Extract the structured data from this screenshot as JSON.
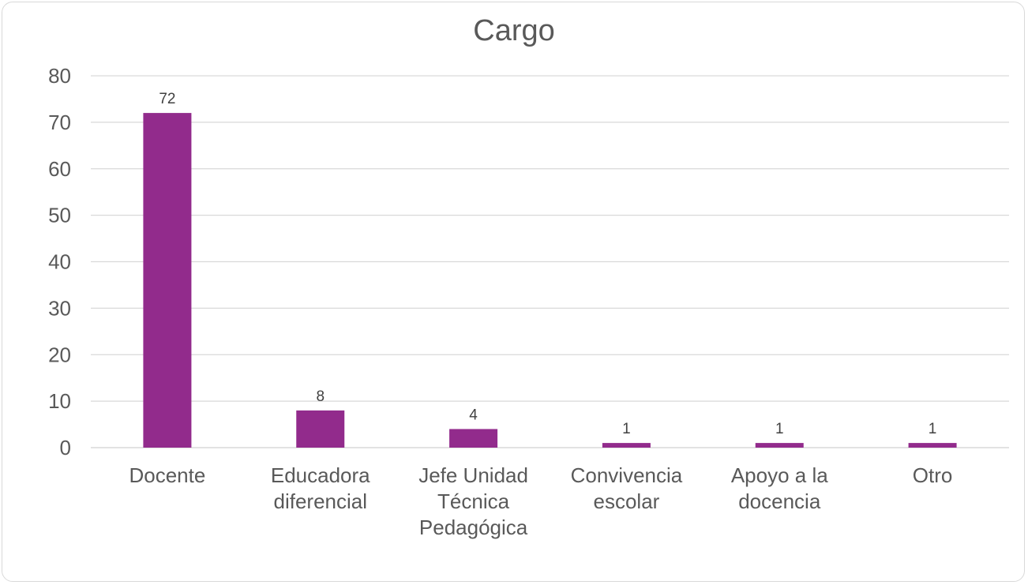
{
  "chart_data": {
    "type": "bar",
    "title": "Cargo",
    "categories": [
      [
        "Docente"
      ],
      [
        "Educadora",
        "diferencial"
      ],
      [
        "Jefe Unidad",
        "Técnica",
        "Pedagógica"
      ],
      [
        "Convivencia",
        "escolar"
      ],
      [
        "Apoyo a la",
        "docencia"
      ],
      [
        "Otro"
      ]
    ],
    "values": [
      72,
      8,
      4,
      1,
      1,
      1
    ],
    "data_labels": [
      "72",
      "8",
      "4",
      "1",
      "1",
      "1"
    ],
    "y_ticks": [
      0,
      10,
      20,
      30,
      40,
      50,
      60,
      70,
      80
    ],
    "ylim": [
      0,
      80
    ],
    "xlabel": "",
    "ylabel": "",
    "grid": true,
    "legend": "none",
    "bar_color": "#922B8C",
    "grid_color": "#d9d9d9",
    "text_color": "#595959"
  }
}
